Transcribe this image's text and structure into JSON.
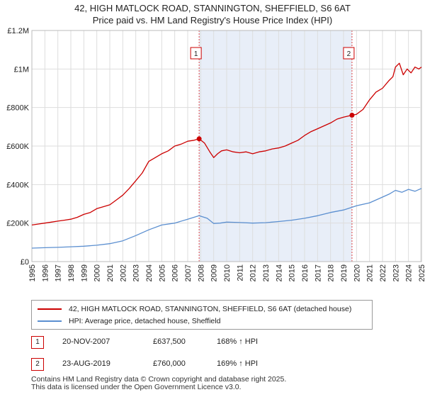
{
  "header": {
    "title_line1": "42, HIGH MATLOCK ROAD, STANNINGTON, SHEFFIELD, S6 6AT",
    "title_line2": "Price paid vs. HM Land Registry's House Price Index (HPI)"
  },
  "colors": {
    "price_line": "#cc0000",
    "hpi_line": "#5b8fd0",
    "shade": "#e8eef8",
    "grid": "#dddddd",
    "marker_vline": "#dd4444"
  },
  "legend": {
    "items": [
      {
        "label": "42, HIGH MATLOCK ROAD, STANNINGTON, SHEFFIELD, S6 6AT (detached house)",
        "color": "#cc0000"
      },
      {
        "label": "HPI: Average price, detached house, Sheffield",
        "color": "#5b8fd0"
      }
    ]
  },
  "annotations": [
    {
      "num": "1",
      "date": "20-NOV-2007",
      "price": "£637,500",
      "hpi": "168% ↑ HPI"
    },
    {
      "num": "2",
      "date": "23-AUG-2019",
      "price": "£760,000",
      "hpi": "169% ↑ HPI"
    }
  ],
  "footer": {
    "line1": "Contains HM Land Registry data © Crown copyright and database right 2025.",
    "line2": "This data is licensed under the Open Government Licence v3.0."
  },
  "chart_data": {
    "type": "line",
    "title": "Price paid vs. HM Land Registry's House Price Index (HPI)",
    "xlabel": "",
    "ylabel": "",
    "xlim": [
      1995,
      2025
    ],
    "ylim": [
      0,
      1200000
    ],
    "x_ticks": [
      1995,
      1996,
      1997,
      1998,
      1999,
      2000,
      2001,
      2002,
      2003,
      2004,
      2005,
      2006,
      2007,
      2008,
      2009,
      2010,
      2011,
      2012,
      2013,
      2014,
      2015,
      2016,
      2017,
      2018,
      2019,
      2020,
      2021,
      2022,
      2023,
      2024,
      2025
    ],
    "y_ticks": [
      0,
      200000,
      400000,
      600000,
      800000,
      1000000,
      1200000
    ],
    "y_tick_labels": [
      "£0",
      "£200K",
      "£400K",
      "£600K",
      "£800K",
      "£1M",
      "£1.2M"
    ],
    "shaded_region": [
      2007.88,
      2019.65
    ],
    "markers": [
      {
        "label": "1",
        "x": 2007.88,
        "y": 637500
      },
      {
        "label": "2",
        "x": 2019.65,
        "y": 760000
      }
    ],
    "series": [
      {
        "name": "42, HIGH MATLOCK ROAD, STANNINGTON, SHEFFIELD, S6 6AT (detached house)",
        "color": "#cc0000",
        "x": [
          1995.0,
          1995.5,
          1996.0,
          1996.5,
          1997.0,
          1997.5,
          1998.0,
          1998.5,
          1999.0,
          1999.5,
          2000.0,
          2000.5,
          2001.0,
          2001.5,
          2002.0,
          2002.5,
          2003.0,
          2003.5,
          2004.0,
          2004.5,
          2005.0,
          2005.5,
          2006.0,
          2006.5,
          2007.0,
          2007.5,
          2007.88,
          2008.3,
          2008.7,
          2009.0,
          2009.3,
          2009.6,
          2010.0,
          2010.5,
          2011.0,
          2011.5,
          2012.0,
          2012.5,
          2013.0,
          2013.5,
          2014.0,
          2014.5,
          2015.0,
          2015.5,
          2016.0,
          2016.5,
          2017.0,
          2017.5,
          2018.0,
          2018.5,
          2019.0,
          2019.65,
          2020.0,
          2020.5,
          2021.0,
          2021.5,
          2022.0,
          2022.5,
          2022.8,
          2023.0,
          2023.3,
          2023.6,
          2023.9,
          2024.2,
          2024.5,
          2024.8,
          2025.0
        ],
        "values": [
          190000,
          195000,
          200000,
          205000,
          210000,
          215000,
          220000,
          230000,
          245000,
          255000,
          275000,
          285000,
          295000,
          320000,
          345000,
          380000,
          420000,
          460000,
          520000,
          540000,
          560000,
          575000,
          600000,
          610000,
          625000,
          630000,
          637500,
          615000,
          570000,
          540000,
          560000,
          575000,
          580000,
          570000,
          565000,
          570000,
          560000,
          570000,
          575000,
          585000,
          590000,
          600000,
          615000,
          630000,
          655000,
          675000,
          690000,
          705000,
          720000,
          740000,
          750000,
          760000,
          765000,
          790000,
          840000,
          880000,
          900000,
          940000,
          960000,
          1010000,
          1030000,
          970000,
          1000000,
          980000,
          1010000,
          1000000,
          1010000
        ]
      },
      {
        "name": "HPI: Average price, detached house, Sheffield",
        "color": "#5b8fd0",
        "x": [
          1995.0,
          1996.0,
          1997.0,
          1998.0,
          1999.0,
          2000.0,
          2001.0,
          2002.0,
          2003.0,
          2004.0,
          2005.0,
          2006.0,
          2007.0,
          2007.88,
          2008.5,
          2009.0,
          2009.5,
          2010.0,
          2011.0,
          2012.0,
          2013.0,
          2014.0,
          2015.0,
          2016.0,
          2017.0,
          2018.0,
          2019.0,
          2019.65,
          2020.0,
          2021.0,
          2022.0,
          2022.5,
          2023.0,
          2023.5,
          2024.0,
          2024.5,
          2025.0
        ],
        "values": [
          70000,
          72000,
          74000,
          77000,
          80000,
          85000,
          93000,
          108000,
          135000,
          165000,
          190000,
          200000,
          220000,
          238000,
          225000,
          198000,
          200000,
          205000,
          203000,
          200000,
          202000,
          208000,
          215000,
          225000,
          238000,
          255000,
          268000,
          282000,
          290000,
          305000,
          335000,
          350000,
          370000,
          360000,
          375000,
          365000,
          380000
        ]
      }
    ]
  }
}
